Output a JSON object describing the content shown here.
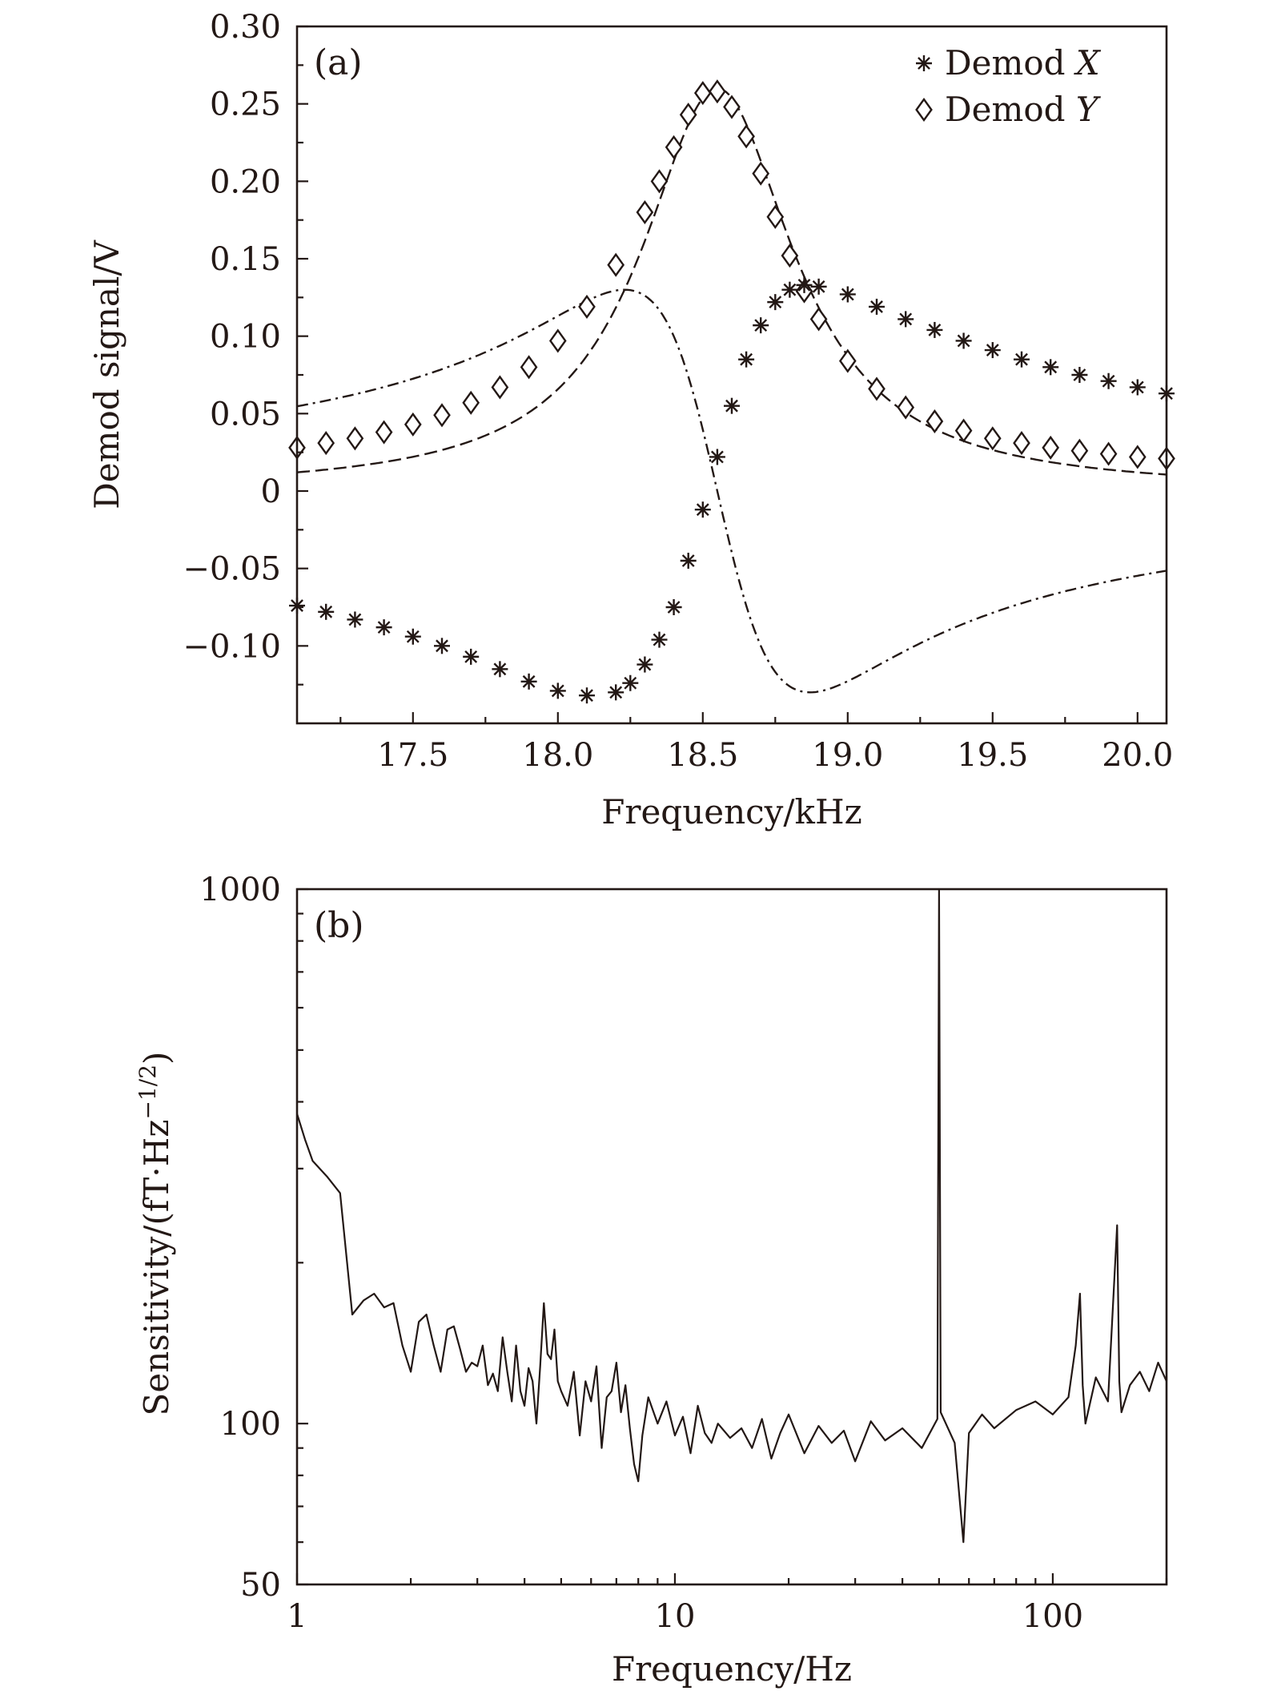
{
  "chart_data": [
    {
      "panel_label": "(a)",
      "type": "line",
      "xlabel": "Frequency/kHz",
      "ylabel": "Demod signal/V",
      "xlim": [
        17.1,
        20.1
      ],
      "ylim": [
        -0.15,
        0.3
      ],
      "xticks": [
        17.5,
        18.0,
        18.5,
        19.0,
        19.5,
        20.0
      ],
      "xtick_labels": [
        "17.5",
        "18.0",
        "18.5",
        "19.0",
        "19.5",
        "20.0"
      ],
      "yticks": [
        0.3,
        0.25,
        0.2,
        0.15,
        0.1,
        0.05,
        0,
        -0.05,
        -0.1
      ],
      "ytick_labels": [
        "0.30",
        "0.25",
        "0.20",
        "0.15",
        "0.10",
        "0.05",
        "0",
        "−0.05",
        "−0.10"
      ],
      "legend_position": "top-right",
      "legend": [
        {
          "prefix": "Demod ",
          "var": "X",
          "marker": "asterisk"
        },
        {
          "prefix": "Demod ",
          "var": "Y",
          "marker": "diamond"
        }
      ],
      "grid": false,
      "model": {
        "f0": 18.55,
        "half_width": 0.32,
        "amplitude": 0.26
      },
      "series": [
        {
          "name": "Demod X",
          "marker": "asterisk",
          "x": [
            17.1,
            17.2,
            17.3,
            17.4,
            17.5,
            17.6,
            17.7,
            17.8,
            17.9,
            18.0,
            18.1,
            18.2,
            18.25,
            18.3,
            18.35,
            18.4,
            18.45,
            18.5,
            18.55,
            18.6,
            18.65,
            18.7,
            18.75,
            18.8,
            18.85,
            18.9,
            19.0,
            19.1,
            19.2,
            19.3,
            19.4,
            19.5,
            19.6,
            19.7,
            19.8,
            19.9,
            20.0,
            20.1
          ],
          "values": [
            -0.074,
            -0.078,
            -0.083,
            -0.088,
            -0.094,
            -0.1,
            -0.107,
            -0.115,
            -0.123,
            -0.129,
            -0.132,
            -0.13,
            -0.124,
            -0.112,
            -0.096,
            -0.075,
            -0.045,
            -0.012,
            0.022,
            0.055,
            0.085,
            0.107,
            0.122,
            0.13,
            0.133,
            0.132,
            0.127,
            0.119,
            0.111,
            0.104,
            0.097,
            0.091,
            0.085,
            0.08,
            0.075,
            0.071,
            0.067,
            0.063
          ]
        },
        {
          "name": "Demod Y",
          "marker": "diamond",
          "x": [
            17.1,
            17.2,
            17.3,
            17.4,
            17.5,
            17.6,
            17.7,
            17.8,
            17.9,
            18.0,
            18.1,
            18.2,
            18.3,
            18.35,
            18.4,
            18.45,
            18.5,
            18.55,
            18.6,
            18.65,
            18.7,
            18.75,
            18.8,
            18.85,
            18.9,
            19.0,
            19.1,
            19.2,
            19.3,
            19.4,
            19.5,
            19.6,
            19.7,
            19.8,
            19.9,
            20.0,
            20.1
          ],
          "values": [
            0.028,
            0.031,
            0.034,
            0.038,
            0.043,
            0.049,
            0.057,
            0.067,
            0.08,
            0.097,
            0.119,
            0.146,
            0.18,
            0.2,
            0.222,
            0.243,
            0.257,
            0.258,
            0.248,
            0.229,
            0.205,
            0.177,
            0.152,
            0.129,
            0.111,
            0.084,
            0.066,
            0.054,
            0.045,
            0.039,
            0.034,
            0.031,
            0.028,
            0.026,
            0.024,
            0.022,
            0.021
          ]
        }
      ]
    },
    {
      "panel_label": "(b)",
      "type": "line",
      "xlabel": "Frequency/Hz",
      "ylabel_main": "Sensitivity/(fT·Hz",
      "ylabel_sup": "−1/2",
      "ylabel_close": ")",
      "xscale": "log",
      "yscale": "log",
      "xlim": [
        1,
        200
      ],
      "ylim": [
        50,
        1000
      ],
      "xticks": [
        1,
        10,
        100
      ],
      "xtick_labels": [
        "1",
        "10",
        "100"
      ],
      "yticks": [
        1000,
        100,
        50
      ],
      "ytick_labels": [
        "1000",
        "100",
        "50"
      ],
      "grid": false,
      "series": [
        {
          "name": "",
          "x": [
            1.0,
            1.05,
            1.1,
            1.2,
            1.3,
            1.4,
            1.5,
            1.6,
            1.7,
            1.8,
            1.9,
            2.0,
            2.1,
            2.2,
            2.3,
            2.4,
            2.5,
            2.6,
            2.7,
            2.8,
            2.9,
            3.0,
            3.1,
            3.2,
            3.3,
            3.4,
            3.5,
            3.6,
            3.7,
            3.8,
            3.9,
            4.0,
            4.1,
            4.2,
            4.3,
            4.4,
            4.5,
            4.6,
            4.7,
            4.8,
            4.9,
            5.0,
            5.2,
            5.4,
            5.6,
            5.8,
            6.0,
            6.2,
            6.4,
            6.6,
            6.8,
            7.0,
            7.2,
            7.4,
            7.6,
            7.8,
            8.0,
            8.2,
            8.5,
            9.0,
            9.5,
            10.0,
            10.5,
            11.0,
            11.5,
            12.0,
            12.5,
            13.0,
            14.0,
            15.0,
            16.0,
            17.0,
            18.0,
            19.0,
            20.0,
            22.0,
            24.0,
            26.0,
            28.0,
            30.0,
            33.0,
            36.0,
            40.0,
            45.0,
            49.5,
            50.0,
            50.5,
            55.0,
            58.0,
            60.0,
            65.0,
            70.0,
            80.0,
            90.0,
            100.0,
            110.0,
            115.0,
            118.0,
            120.0,
            122.0,
            130.0,
            140.0,
            148.0,
            150.0,
            152.0,
            160.0,
            170.0,
            180.0,
            190.0,
            200.0
          ],
          "values": [
            380,
            340,
            310,
            290,
            270,
            160,
            170,
            175,
            165,
            168,
            140,
            125,
            155,
            160,
            140,
            125,
            150,
            152,
            138,
            125,
            130,
            128,
            140,
            118,
            124,
            115,
            145,
            125,
            110,
            140,
            115,
            108,
            127,
            120,
            100,
            128,
            168,
            135,
            132,
            150,
            120,
            115,
            108,
            125,
            95,
            120,
            110,
            128,
            90,
            112,
            115,
            130,
            105,
            118,
            98,
            84,
            78,
            95,
            112,
            100,
            110,
            95,
            103,
            88,
            108,
            96,
            92,
            100,
            94,
            98,
            90,
            102,
            86,
            96,
            104,
            88,
            99,
            92,
            97,
            85,
            101,
            93,
            98,
            90,
            102,
            1000,
            105,
            92,
            60,
            96,
            104,
            98,
            106,
            110,
            104,
            112,
            140,
            175,
            118,
            100,
            122,
            110,
            235,
            120,
            105,
            118,
            125,
            115,
            130,
            120
          ]
        }
      ]
    }
  ]
}
